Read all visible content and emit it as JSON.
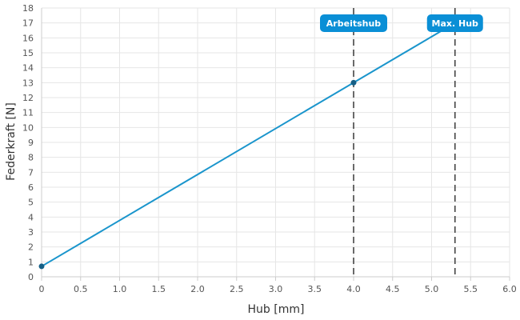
{
  "chart_data": {
    "type": "line",
    "title": "",
    "xlabel": "Hub [mm]",
    "ylabel": "Federkraft [N]",
    "xlim": [
      0,
      6
    ],
    "ylim": [
      0,
      18
    ],
    "x_ticks": [
      "0",
      "0.5",
      "1.0",
      "1.5",
      "2.0",
      "2.5",
      "3.0",
      "3.5",
      "4.0",
      "4.5",
      "5.0",
      "5.5",
      "6.0"
    ],
    "y_ticks": [
      "0",
      "1",
      "2",
      "3",
      "4",
      "5",
      "6",
      "7",
      "8",
      "9",
      "10",
      "11",
      "12",
      "13",
      "14",
      "15",
      "16",
      "17",
      "18"
    ],
    "grid": true,
    "series": [
      {
        "x": [
          0,
          5.3
        ],
        "y": [
          0.7,
          17.0
        ],
        "color": "#1a95cc"
      }
    ],
    "markers": [
      {
        "x": 0,
        "y": 0.7
      },
      {
        "x": 4.0,
        "y": 13.0
      }
    ],
    "reference_lines": [
      {
        "x": 4.0,
        "label": "Arbeitshub"
      },
      {
        "x": 5.3,
        "label": "Max. Hub"
      }
    ],
    "colors": {
      "line": "#1a95cc",
      "badge": "#0a8fd6",
      "marker": "#155f86",
      "grid": "#e6e6e6",
      "reference": "#444444"
    }
  }
}
